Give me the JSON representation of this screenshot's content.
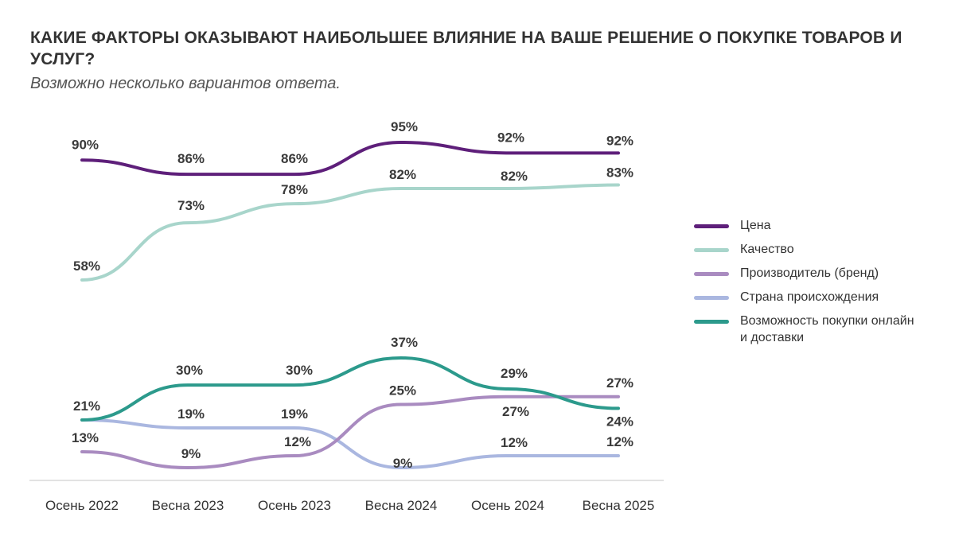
{
  "title": "КАКИЕ ФАКТОРЫ ОКАЗЫВАЮТ НАИБОЛЬШЕЕ ВЛИЯНИЕ НА ВАШЕ РЕШЕНИЕ О ПОКУПКЕ ТОВАРОВ И УСЛУГ?",
  "subtitle": "Возможно несколько вариантов ответа.",
  "chart_data": {
    "type": "line",
    "title": "КАКИЕ ФАКТОРЫ ОКАЗЫВАЮТ НАИБОЛЬШЕЕ ВЛИЯНИЕ НА ВАШЕ РЕШЕНИЕ О ПОКУПКЕ ТОВАРОВ И УСЛУГ?",
    "xlabel": "",
    "ylabel": "",
    "grid": false,
    "legend_position": "right",
    "ylim": [
      0,
      100
    ],
    "categories": [
      "Осень 2022",
      "Весна 2023",
      "Осень 2023",
      "Весна 2024",
      "Осень 2024",
      "Весна 2025"
    ],
    "series": [
      {
        "name": "Цена",
        "color": "#5e1f7a",
        "values": [
          90,
          86,
          86,
          95,
          92,
          92
        ],
        "labels": [
          "90%",
          "86%",
          "86%",
          "95%",
          "92%",
          "92%"
        ]
      },
      {
        "name": "Качество",
        "color": "#a8d5cb",
        "values": [
          58,
          73,
          78,
          82,
          82,
          83
        ],
        "labels": [
          "58%",
          "73%",
          "78%",
          "82%",
          "82%",
          "83%"
        ]
      },
      {
        "name": "Производитель (бренд)",
        "color": "#a98bc0",
        "values": [
          13,
          9,
          12,
          25,
          27,
          27
        ],
        "labels": [
          "13%",
          "9%",
          "12%",
          "25%",
          "27%",
          "27%"
        ]
      },
      {
        "name": "Страна происхождения",
        "color": "#aab7e0",
        "values": [
          21,
          19,
          19,
          9,
          12,
          12
        ],
        "labels": [
          "",
          "19%",
          "19%",
          "9%",
          "12%",
          "12%"
        ]
      },
      {
        "name": "Возможность покупки онлайн и доставки",
        "color": "#2c9a8c",
        "values": [
          21,
          30,
          30,
          37,
          29,
          24
        ],
        "labels": [
          "21%",
          "30%",
          "30%",
          "37%",
          "29%",
          "24%"
        ]
      }
    ]
  }
}
